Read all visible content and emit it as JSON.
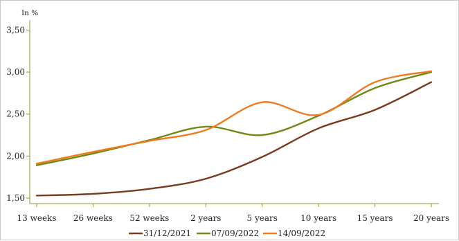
{
  "chart_data": {
    "type": "line",
    "title": "",
    "xlabel": "",
    "ylabel": "In %",
    "categories": [
      "13 weeks",
      "26 weeks",
      "52 weeks",
      "2 years",
      "5 years",
      "10 years",
      "15 years",
      "20 years"
    ],
    "yticks": [
      "1,50",
      "2,00",
      "2,50",
      "3,00",
      "3,50"
    ],
    "ylim": [
      1.5,
      3.7
    ],
    "grid": false,
    "legend_position": "bottom",
    "series": [
      {
        "name": "31/12/2021",
        "color": "#7a3b1d",
        "values": [
          1.53,
          1.55,
          1.61,
          1.73,
          1.99,
          2.33,
          2.55,
          2.88
        ]
      },
      {
        "name": "07/09/2022",
        "color": "#6f8a17",
        "values": [
          1.89,
          2.03,
          2.19,
          2.35,
          2.25,
          2.48,
          2.81,
          3.0
        ]
      },
      {
        "name": "14/09/2022",
        "color": "#f07a1e",
        "values": [
          1.91,
          2.05,
          2.18,
          2.31,
          2.64,
          2.49,
          2.88,
          3.01
        ]
      }
    ]
  }
}
